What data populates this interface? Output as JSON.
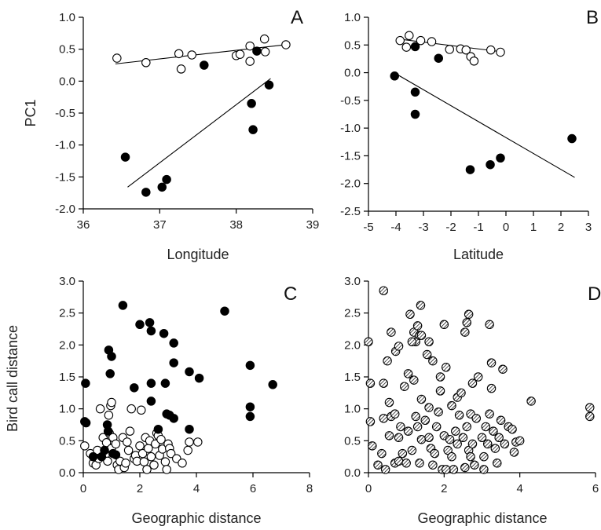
{
  "chart_data": [
    {
      "panel": "A",
      "type": "scatter",
      "xlabel": "Longitude",
      "ylabel": "PC1",
      "xlim": [
        36,
        39
      ],
      "ylim": [
        -2.0,
        1.0
      ],
      "xticks": [
        "36",
        "37",
        "38",
        "39"
      ],
      "yticks": [
        "-2.0",
        "-1.5",
        "-1.0",
        "-0.5",
        "0.0",
        "0.5",
        "1.0"
      ],
      "series": [
        {
          "style": "open",
          "points": [
            [
              36.44,
              0.36
            ],
            [
              36.82,
              0.29
            ],
            [
              37.25,
              0.43
            ],
            [
              37.28,
              0.19
            ],
            [
              37.42,
              0.41
            ],
            [
              38.0,
              0.4
            ],
            [
              38.05,
              0.42
            ],
            [
              38.18,
              0.55
            ],
            [
              38.18,
              0.31
            ],
            [
              38.37,
              0.66
            ],
            [
              38.38,
              0.46
            ],
            [
              38.65,
              0.57
            ]
          ]
        },
        {
          "style": "filled",
          "points": [
            [
              36.55,
              -1.19
            ],
            [
              36.82,
              -1.74
            ],
            [
              37.03,
              -1.66
            ],
            [
              37.09,
              -1.54
            ],
            [
              37.58,
              0.25
            ],
            [
              38.2,
              -0.35
            ],
            [
              38.22,
              -0.76
            ],
            [
              38.27,
              0.47
            ],
            [
              38.43,
              -0.06
            ]
          ]
        }
      ],
      "fits": [
        {
          "x": [
            36.42,
            38.65
          ],
          "y": [
            0.27,
            0.57
          ]
        },
        {
          "x": [
            36.58,
            38.45
          ],
          "y": [
            -1.66,
            0.04
          ]
        }
      ]
    },
    {
      "panel": "B",
      "type": "scatter",
      "xlabel": "Latitude",
      "ylabel": "",
      "xlim": [
        -5,
        3
      ],
      "ylim": [
        -2.5,
        1.0
      ],
      "xticks": [
        "-5",
        "-4",
        "-3",
        "-2",
        "-1",
        "0",
        "1",
        "2",
        "3"
      ],
      "yticks": [
        "-2.5",
        "-2.0",
        "-1.5",
        "-1.0",
        "-0.5",
        "0.0",
        "0.5",
        "1.0"
      ],
      "series": [
        {
          "style": "open",
          "points": [
            [
              -3.85,
              0.58
            ],
            [
              -3.62,
              0.46
            ],
            [
              -3.52,
              0.67
            ],
            [
              -3.1,
              0.58
            ],
            [
              -2.7,
              0.56
            ],
            [
              -2.05,
              0.42
            ],
            [
              -1.65,
              0.43
            ],
            [
              -1.45,
              0.41
            ],
            [
              -1.28,
              0.29
            ],
            [
              -1.16,
              0.21
            ],
            [
              -0.55,
              0.41
            ],
            [
              -0.2,
              0.37
            ]
          ]
        },
        {
          "style": "filled",
          "points": [
            [
              -4.05,
              -0.06
            ],
            [
              -3.3,
              0.47
            ],
            [
              -3.3,
              -0.35
            ],
            [
              -3.3,
              -0.75
            ],
            [
              -2.45,
              0.26
            ],
            [
              -1.3,
              -1.75
            ],
            [
              -0.57,
              -1.66
            ],
            [
              -0.2,
              -1.54
            ],
            [
              2.4,
              -1.19
            ]
          ]
        }
      ],
      "fits": [
        {
          "x": [
            -3.95,
            -0.2
          ],
          "y": [
            0.61,
            0.38
          ]
        },
        {
          "x": [
            -4.0,
            2.5
          ],
          "y": [
            -0.02,
            -1.89
          ]
        }
      ]
    },
    {
      "panel": "C",
      "type": "scatter",
      "xlabel": "Geographic distance",
      "ylabel": "Bird call distance",
      "xlim": [
        0,
        8
      ],
      "ylim": [
        0,
        3.0
      ],
      "xticks": [
        "0",
        "2",
        "4",
        "6",
        "8"
      ],
      "yticks": [
        "0.0",
        "0.5",
        "1.0",
        "1.5",
        "2.0",
        "2.5",
        "3.0"
      ],
      "series": [
        {
          "style": "open",
          "points": [
            [
              0.05,
              0.42
            ],
            [
              0.25,
              0.3
            ],
            [
              0.35,
              0.15
            ],
            [
              0.45,
              0.12
            ],
            [
              0.5,
              0.35
            ],
            [
              0.55,
              0.22
            ],
            [
              0.6,
              1.0
            ],
            [
              0.7,
              0.55
            ],
            [
              0.78,
              0.28
            ],
            [
              0.82,
              0.47
            ],
            [
              0.86,
              0.18
            ],
            [
              0.9,
              0.9
            ],
            [
              0.92,
              0.62
            ],
            [
              0.97,
              1.05
            ],
            [
              1.0,
              1.1
            ],
            [
              1.0,
              0.38
            ],
            [
              1.05,
              0.55
            ],
            [
              1.15,
              0.45
            ],
            [
              1.2,
              0.12
            ],
            [
              1.25,
              0.05
            ],
            [
              1.3,
              0.18
            ],
            [
              1.4,
              0.55
            ],
            [
              1.45,
              0.08
            ],
            [
              1.5,
              0.15
            ],
            [
              1.55,
              0.48
            ],
            [
              1.6,
              0.35
            ],
            [
              1.65,
              0.65
            ],
            [
              1.7,
              1.0
            ],
            [
              1.8,
              0.22
            ],
            [
              1.85,
              0.27
            ],
            [
              1.9,
              0.18
            ],
            [
              2.0,
              0.42
            ],
            [
              2.05,
              0.98
            ],
            [
              2.1,
              0.3
            ],
            [
              2.15,
              0.17
            ],
            [
              2.2,
              0.55
            ],
            [
              2.25,
              0.05
            ],
            [
              2.3,
              0.38
            ],
            [
              2.35,
              0.5
            ],
            [
              2.4,
              0.25
            ],
            [
              2.5,
              0.12
            ],
            [
              2.55,
              0.45
            ],
            [
              2.6,
              0.62
            ],
            [
              2.65,
              0.58
            ],
            [
              2.7,
              0.27
            ],
            [
              2.75,
              0.52
            ],
            [
              2.8,
              0.37
            ],
            [
              2.9,
              0.17
            ],
            [
              2.95,
              0.05
            ],
            [
              3.0,
              0.45
            ],
            [
              3.05,
              0.38
            ],
            [
              3.1,
              0.3
            ],
            [
              3.3,
              0.22
            ],
            [
              3.5,
              0.15
            ],
            [
              3.7,
              0.35
            ],
            [
              3.75,
              0.48
            ],
            [
              4.05,
              0.48
            ]
          ]
        },
        {
          "style": "filled",
          "points": [
            [
              0.05,
              0.8
            ],
            [
              0.08,
              1.4
            ],
            [
              0.1,
              0.78
            ],
            [
              0.35,
              0.25
            ],
            [
              0.65,
              0.25
            ],
            [
              0.75,
              0.35
            ],
            [
              0.85,
              0.75
            ],
            [
              0.88,
              0.65
            ],
            [
              0.9,
              1.92
            ],
            [
              0.95,
              1.55
            ],
            [
              1.0,
              1.82
            ],
            [
              1.05,
              0.3
            ],
            [
              1.15,
              0.28
            ],
            [
              1.4,
              2.62
            ],
            [
              1.8,
              1.33
            ],
            [
              2.0,
              2.32
            ],
            [
              2.35,
              2.35
            ],
            [
              2.4,
              2.22
            ],
            [
              2.4,
              1.4
            ],
            [
              2.4,
              1.12
            ],
            [
              2.65,
              0.68
            ],
            [
              2.85,
              2.18
            ],
            [
              2.9,
              1.4
            ],
            [
              2.95,
              0.92
            ],
            [
              3.05,
              0.9
            ],
            [
              3.2,
              2.03
            ],
            [
              3.2,
              1.72
            ],
            [
              3.2,
              0.85
            ],
            [
              3.75,
              1.58
            ],
            [
              3.75,
              0.68
            ],
            [
              4.1,
              1.48
            ],
            [
              5.0,
              2.53
            ],
            [
              5.9,
              1.68
            ],
            [
              5.9,
              1.03
            ],
            [
              5.9,
              0.88
            ],
            [
              6.7,
              1.38
            ]
          ]
        }
      ]
    },
    {
      "panel": "D",
      "type": "scatter",
      "xlabel": "Geographic distance",
      "ylabel": "",
      "xlim": [
        0,
        6
      ],
      "ylim": [
        0,
        3.0
      ],
      "xticks": [
        "0",
        "2",
        "4",
        "6"
      ],
      "yticks": [
        "0.0",
        "0.5",
        "1.0",
        "1.5",
        "2.0",
        "2.5",
        "3.0"
      ],
      "series": [
        {
          "style": "hatched",
          "points": [
            [
              0.0,
              2.05
            ],
            [
              0.05,
              0.8
            ],
            [
              0.05,
              1.4
            ],
            [
              0.1,
              0.42
            ],
            [
              0.25,
              0.12
            ],
            [
              0.35,
              0.3
            ],
            [
              0.4,
              0.85
            ],
            [
              0.4,
              1.4
            ],
            [
              0.4,
              2.85
            ],
            [
              0.45,
              0.05
            ],
            [
              0.5,
              1.75
            ],
            [
              0.55,
              0.58
            ],
            [
              0.55,
              1.1
            ],
            [
              0.6,
              0.88
            ],
            [
              0.6,
              2.2
            ],
            [
              0.7,
              0.15
            ],
            [
              0.7,
              0.92
            ],
            [
              0.72,
              1.9
            ],
            [
              0.8,
              0.18
            ],
            [
              0.8,
              0.55
            ],
            [
              0.8,
              1.98
            ],
            [
              0.85,
              0.72
            ],
            [
              0.9,
              0.3
            ],
            [
              0.95,
              1.35
            ],
            [
              1.0,
              0.15
            ],
            [
              1.05,
              0.65
            ],
            [
              1.05,
              1.55
            ],
            [
              1.1,
              2.48
            ],
            [
              1.15,
              0.35
            ],
            [
              1.2,
              1.45
            ],
            [
              1.2,
              2.2
            ],
            [
              1.25,
              0.88
            ],
            [
              1.25,
              2.05
            ],
            [
              1.3,
              0.72
            ],
            [
              1.3,
              2.3
            ],
            [
              1.35,
              0.15
            ],
            [
              1.35,
              2.15
            ],
            [
              1.38,
              2.62
            ],
            [
              1.4,
              0.52
            ],
            [
              1.4,
              1.15
            ],
            [
              1.4,
              2.15
            ],
            [
              1.5,
              0.82
            ],
            [
              1.55,
              1.85
            ],
            [
              1.6,
              0.55
            ],
            [
              1.6,
              1.02
            ],
            [
              1.6,
              2.05
            ],
            [
              1.65,
              0.38
            ],
            [
              1.7,
              1.75
            ],
            [
              1.75,
              0.3
            ],
            [
              1.8,
              0.72
            ],
            [
              1.85,
              0.95
            ],
            [
              1.9,
              1.28
            ],
            [
              1.9,
              1.5
            ],
            [
              1.95,
              0.05
            ],
            [
              2.0,
              0.58
            ],
            [
              2.0,
              2.32
            ],
            [
              2.05,
              1.65
            ],
            [
              2.1,
              0.35
            ],
            [
              2.15,
              0.52
            ],
            [
              2.2,
              0.25
            ],
            [
              2.2,
              1.05
            ],
            [
              2.25,
              0.05
            ],
            [
              2.3,
              0.65
            ],
            [
              2.35,
              0.45
            ],
            [
              2.35,
              1.18
            ],
            [
              2.4,
              0.9
            ],
            [
              2.45,
              1.25
            ],
            [
              2.5,
              0.55
            ],
            [
              2.55,
              2.2
            ],
            [
              2.55,
              0.08
            ],
            [
              2.6,
              0.72
            ],
            [
              2.6,
              2.35
            ],
            [
              2.65,
              2.48
            ],
            [
              2.65,
              0.35
            ],
            [
              2.7,
              0.25
            ],
            [
              2.7,
              0.92
            ],
            [
              2.75,
              0.45
            ],
            [
              2.75,
              1.4
            ],
            [
              2.8,
              0.12
            ],
            [
              2.85,
              0.85
            ],
            [
              2.9,
              1.5
            ],
            [
              3.0,
              0.55
            ],
            [
              3.05,
              0.25
            ],
            [
              3.1,
              0.72
            ],
            [
              3.15,
              0.45
            ],
            [
              3.2,
              0.92
            ],
            [
              3.25,
              1.32
            ],
            [
              3.25,
              1.72
            ],
            [
              3.3,
              0.65
            ],
            [
              3.35,
              0.38
            ],
            [
              3.4,
              0.15
            ],
            [
              3.45,
              0.55
            ],
            [
              3.5,
              0.82
            ],
            [
              3.55,
              1.62
            ],
            [
              3.6,
              0.45
            ],
            [
              3.7,
              0.72
            ],
            [
              3.8,
              0.68
            ],
            [
              3.85,
              0.32
            ],
            [
              3.9,
              0.48
            ],
            [
              4.0,
              0.5
            ],
            [
              4.3,
              1.12
            ],
            [
              5.85,
              1.02
            ],
            [
              5.85,
              0.88
            ],
            [
              3.05,
              0.05
            ],
            [
              1.15,
              2.05
            ],
            [
              3.2,
              2.32
            ],
            [
              2.05,
              0.05
            ],
            [
              1.7,
              0.12
            ]
          ]
        }
      ]
    }
  ],
  "panels": {
    "A": {
      "letter": "A",
      "ylabel": "PC1",
      "xlabel": "Longitude"
    },
    "B": {
      "letter": "B",
      "ylabel": "",
      "xlabel": "Latitude"
    },
    "C": {
      "letter": "C",
      "ylabel": "Bird call distance",
      "xlabel": "Geographic distance"
    },
    "D": {
      "letter": "D",
      "ylabel": "",
      "xlabel": "Geographic distance"
    }
  }
}
